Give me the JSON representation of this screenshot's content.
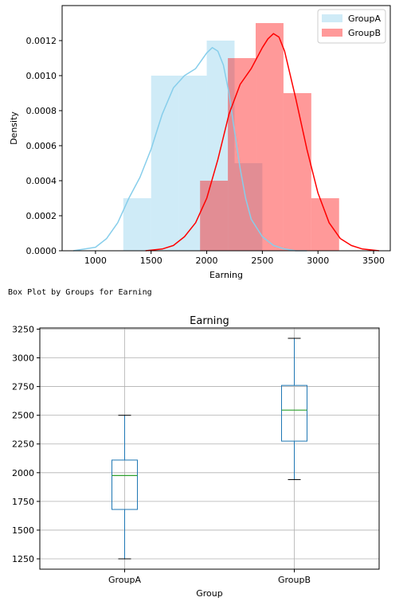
{
  "caption": "Box Plot by Groups for Earning",
  "chart_data": [
    {
      "type": "histogram",
      "title": "",
      "xlabel": "Earning",
      "ylabel": "Density",
      "xlim": [
        700,
        3650
      ],
      "ylim": [
        0,
        0.0014
      ],
      "xticks": [
        "1000",
        "1500",
        "2000",
        "2500",
        "3000",
        "3500"
      ],
      "yticks": [
        "0.0000",
        "0.0002",
        "0.0004",
        "0.0006",
        "0.0008",
        "0.0010",
        "0.0012"
      ],
      "grid": false,
      "legend": "top-right",
      "series": [
        {
          "name": "GroupA",
          "color": "#87ceeb",
          "bins": [
            {
              "x0": 1250,
              "x1": 1500,
              "density": 0.0003
            },
            {
              "x0": 1500,
              "x1": 1750,
              "density": 0.001
            },
            {
              "x0": 1750,
              "x1": 2000,
              "density": 0.001
            },
            {
              "x0": 2000,
              "x1": 2250,
              "density": 0.0012
            },
            {
              "x0": 2250,
              "x1": 2500,
              "density": 0.0005
            }
          ],
          "kde": {
            "x": [
              800,
              1000,
              1100,
              1200,
              1300,
              1400,
              1500,
              1600,
              1700,
              1800,
              1900,
              2000,
              2050,
              2100,
              2150,
              2200,
              2250,
              2300,
              2350,
              2400,
              2500,
              2600,
              2700,
              2800,
              2900
            ],
            "y": [
              0.0,
              2e-05,
              7e-05,
              0.00016,
              0.0003,
              0.00042,
              0.00058,
              0.00078,
              0.00093,
              0.001,
              0.00104,
              0.00113,
              0.00116,
              0.00114,
              0.00106,
              0.0009,
              0.00068,
              0.00047,
              0.0003,
              0.00018,
              8e-05,
              3e-05,
              1e-05,
              0.0,
              0.0
            ]
          }
        },
        {
          "name": "GroupB",
          "color": "#ff0000",
          "bins": [
            {
              "x0": 1940,
              "x1": 2190,
              "density": 0.0004
            },
            {
              "x0": 2190,
              "x1": 2440,
              "density": 0.0011
            },
            {
              "x0": 2440,
              "x1": 2690,
              "density": 0.0013
            },
            {
              "x0": 2690,
              "x1": 2940,
              "density": 0.0009
            },
            {
              "x0": 2940,
              "x1": 3190,
              "density": 0.0003
            }
          ],
          "kde": {
            "x": [
              1450,
              1600,
              1700,
              1800,
              1900,
              2000,
              2100,
              2200,
              2300,
              2400,
              2500,
              2550,
              2600,
              2650,
              2700,
              2800,
              2900,
              3000,
              3100,
              3200,
              3300,
              3400,
              3550
            ],
            "y": [
              0.0,
              1e-05,
              3e-05,
              8e-05,
              0.00016,
              0.0003,
              0.00052,
              0.00078,
              0.00095,
              0.00104,
              0.00116,
              0.00121,
              0.00124,
              0.00122,
              0.00114,
              0.00087,
              0.00058,
              0.00033,
              0.00016,
              7e-05,
              3e-05,
              1e-05,
              0.0
            ]
          }
        }
      ]
    },
    {
      "type": "box",
      "title": "Earning",
      "xlabel": "Group",
      "ylabel": "",
      "ylim": [
        1160,
        3260
      ],
      "yticks": [
        "1250",
        "1500",
        "1750",
        "2000",
        "2250",
        "2500",
        "2750",
        "3000",
        "3250"
      ],
      "grid": true,
      "categories": [
        "GroupA",
        "GroupB"
      ],
      "boxes": [
        {
          "name": "GroupA",
          "min": 1250,
          "q1": 1680,
          "median": 1975,
          "q3": 2110,
          "max": 2500
        },
        {
          "name": "GroupB",
          "min": 1940,
          "q1": 2275,
          "median": 2545,
          "q3": 2760,
          "max": 3170
        }
      ],
      "colors": {
        "box": "#1f77b4",
        "median": "#2ca02c",
        "whisker": "#1f77b4",
        "cap": "#000000",
        "grid": "#b0b0b0"
      }
    }
  ]
}
